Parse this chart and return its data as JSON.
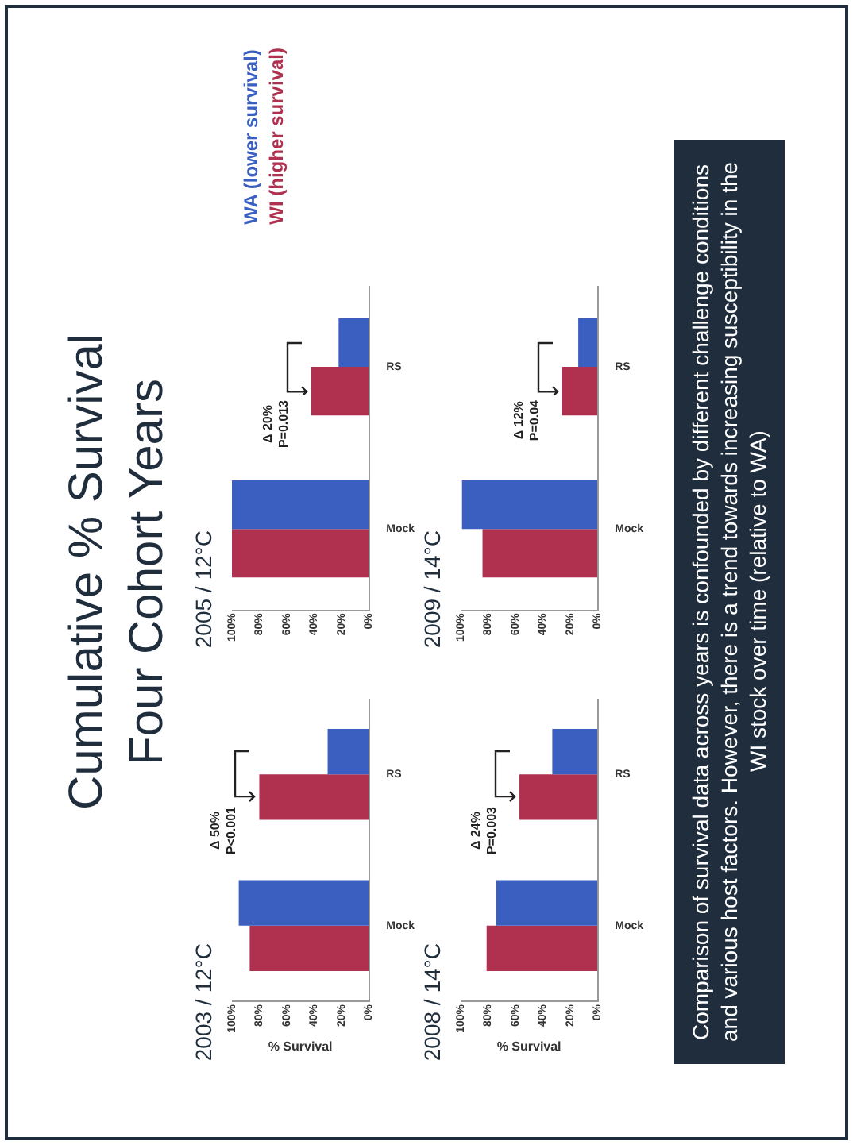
{
  "chart_data": [
    {
      "type": "bar",
      "orientation": "horizontal",
      "title": "2003 / 12°C",
      "xlabel": "% Survival",
      "categories": [
        "RS",
        "Mock"
      ],
      "series": [
        {
          "color": "#3b5fc0",
          "values": [
            30,
            95
          ]
        },
        {
          "color": "#b03050",
          "values": [
            80,
            87
          ]
        }
      ],
      "xlim": [
        100,
        0
      ],
      "xticks": [
        {
          "value": 0,
          "label": "0%"
        },
        {
          "value": 20,
          "label": "20%"
        },
        {
          "value": 40,
          "label": "40%"
        },
        {
          "value": 60,
          "label": "60%"
        },
        {
          "value": 80,
          "label": "80%"
        },
        {
          "value": 100,
          "label": "100%"
        }
      ],
      "annotations": [
        "Δ 50%\nP<0.001"
      ]
    },
    {
      "type": "bar",
      "orientation": "horizontal",
      "title": "2005 / 12°C",
      "categories": [
        "RS",
        "Mock"
      ],
      "legend": "top left",
      "series": [
        {
          "name": "WA (lower survival)",
          "color": "#3b5fc0",
          "values": [
            22,
            100
          ]
        },
        {
          "name": "WI (higher survival)",
          "color": "#b03050",
          "values": [
            42,
            100
          ]
        }
      ],
      "xlim": [
        100,
        0
      ],
      "xticks": [
        {
          "value": 0,
          "label": "0%"
        },
        {
          "value": 20,
          "label": "20%"
        },
        {
          "value": 40,
          "label": "40%"
        },
        {
          "value": 60,
          "label": "60%"
        },
        {
          "value": 80,
          "label": "80%"
        },
        {
          "value": 100,
          "label": "100%"
        }
      ],
      "annotations": [
        "Δ 20%\nP=0.013"
      ]
    },
    {
      "type": "bar",
      "orientation": "horizontal",
      "title": "2008 / 14°C",
      "xlabel": "% Survival",
      "categories": [
        "RS",
        "Mock"
      ],
      "series": [
        {
          "color": "#3b5fc0",
          "values": [
            33,
            74
          ]
        },
        {
          "color": "#b03050",
          "values": [
            57,
            81
          ]
        }
      ],
      "xlim": [
        100,
        0
      ],
      "xticks": [
        {
          "value": 0,
          "label": "0%"
        },
        {
          "value": 20,
          "label": "20%"
        },
        {
          "value": 40,
          "label": "40%"
        },
        {
          "value": 60,
          "label": "60%"
        },
        {
          "value": 80,
          "label": "80%"
        },
        {
          "value": 100,
          "label": "100%"
        }
      ],
      "annotations": [
        "Δ 24%\nP=0.003"
      ]
    },
    {
      "type": "bar",
      "orientation": "horizontal",
      "title": "2009 / 14°C",
      "categories": [
        "RS",
        "Mock"
      ],
      "series": [
        {
          "color": "#3b5fc0",
          "values": [
            14,
            99
          ]
        },
        {
          "color": "#b03050",
          "values": [
            26,
            84
          ]
        }
      ],
      "xlim": [
        100,
        0
      ],
      "xticks": [
        {
          "value": 0,
          "label": "0%"
        },
        {
          "value": 20,
          "label": "20%"
        },
        {
          "value": 40,
          "label": "40%"
        },
        {
          "value": 60,
          "label": "60%"
        },
        {
          "value": 80,
          "label": "80%"
        },
        {
          "value": 100,
          "label": "100%"
        }
      ],
      "annotations": [
        "Δ 12%\nP=0.04"
      ]
    },
    {
      "type": "other",
      "title": "Cumulative % Survival\nFour Cohort Years",
      "annotations": [
        "Comparison of survival data across years is confounded by different challenge conditions and various host factors. However, there is a trend towards increasing susceptibility in the WI stock over time (relative to WA)"
      ]
    }
  ]
}
